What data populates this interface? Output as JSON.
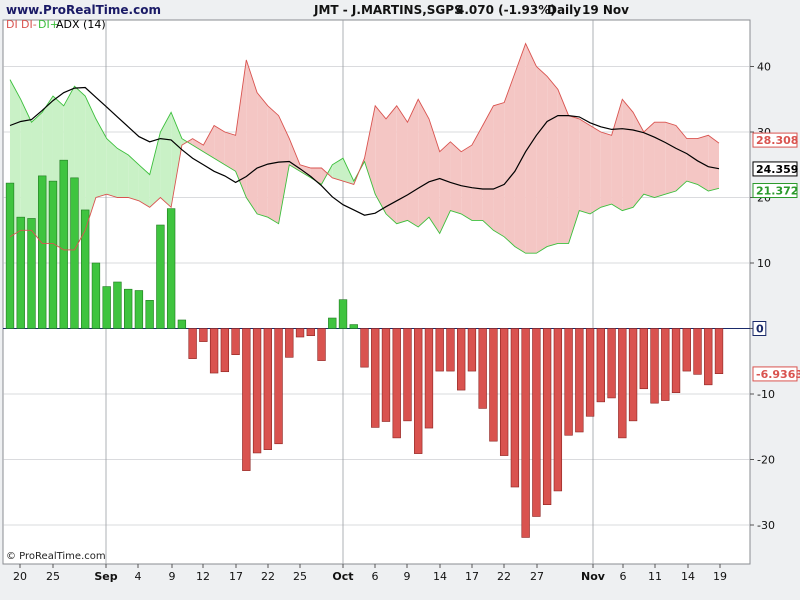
{
  "header": {
    "site": "www.ProRealTime.com",
    "title": "JMT - J.MARTINS,SGPS",
    "price": "4.070 (-1.93%)",
    "period": "Daily",
    "date": "19 Nov"
  },
  "legend": {
    "di": "DI",
    "di_minus": "DI-",
    "di_plus": "DI+",
    "adx": "ADX (14)"
  },
  "footer": {
    "copyright": "© ProRealTime.com"
  },
  "colors": {
    "di_plus": "#3cbf3c",
    "di_minus": "#d9534f",
    "adx": "#000000",
    "bull_fill": "#c9f1c6",
    "bear_fill": "#f4c6c4",
    "grid": "#b5b8bd",
    "plot_bg": "#ffffff",
    "page_bg": "#eef0f2"
  },
  "chart_data": {
    "type": "bar",
    "title": "JMT - J.MARTINS,SGPS",
    "ylim": [
      -35,
      45
    ],
    "y_ticks": [
      40,
      30,
      20,
      10,
      0,
      -10,
      -20,
      -30
    ],
    "x_tick_labels": [
      "20",
      "25",
      "Sep",
      "4",
      "9",
      "12",
      "17",
      "22",
      "25",
      "Oct",
      "6",
      "9",
      "14",
      "17",
      "22",
      "27",
      "Nov",
      "6",
      "11",
      "14",
      "19"
    ],
    "x_major_labels": [
      "Sep",
      "Oct",
      "Nov"
    ],
    "last_values": {
      "di_minus": "28.308",
      "adx": "24.359",
      "di_plus": "21.372",
      "zero": "0",
      "di": "-6.9363"
    },
    "series": [
      {
        "name": "DI",
        "values": [
          22.2,
          17.0,
          16.8,
          23.3,
          22.5,
          25.7,
          23.0,
          18.1,
          10.0,
          6.4,
          7.1,
          6.0,
          5.8,
          4.3,
          15.8,
          18.3,
          1.3,
          -4.6,
          -2.0,
          -6.8,
          -6.6,
          -4.0,
          -21.7,
          -19.0,
          -18.5,
          -17.6,
          -4.4,
          -1.3,
          -1.1,
          -4.9,
          1.6,
          4.4,
          0.6,
          -5.9,
          -15.1,
          -14.2,
          -16.7,
          -14.1,
          -19.1,
          -15.2,
          -6.5,
          -6.5,
          -9.4,
          -6.5,
          -12.2,
          -17.2,
          -19.4,
          -24.2,
          -31.9,
          -28.7,
          -26.9,
          -24.8,
          -16.3,
          -15.8,
          -13.4,
          -11.2,
          -10.6,
          -16.7,
          -14.1,
          -9.2,
          -11.4,
          -11.0,
          -9.8,
          -6.5,
          -7.0,
          -8.6,
          -6.9
        ]
      },
      {
        "name": "DI+",
        "values": [
          38.0,
          35.0,
          31.5,
          33.0,
          35.5,
          34.0,
          37.0,
          35.5,
          32.0,
          29.0,
          27.5,
          26.5,
          25.0,
          23.5,
          30.0,
          33.0,
          29.0,
          28.0,
          27.0,
          26.0,
          25.0,
          24.0,
          20.0,
          17.5,
          17.0,
          16.0,
          25.0,
          24.0,
          23.0,
          22.0,
          25.0,
          26.0,
          22.5,
          25.5,
          20.5,
          17.5,
          16.0,
          16.5,
          15.5,
          17.0,
          14.5,
          18.0,
          17.5,
          16.5,
          16.5,
          15.0,
          14.0,
          12.5,
          11.5,
          11.5,
          12.5,
          13.0,
          13.0,
          18.0,
          17.5,
          18.5,
          19.0,
          18.0,
          18.5,
          20.5,
          20.0,
          20.5,
          21.0,
          22.5,
          22.0,
          21.0,
          21.4
        ]
      },
      {
        "name": "DI-",
        "values": [
          14.0,
          15.0,
          15.0,
          13.0,
          13.0,
          12.0,
          12.0,
          15.0,
          20.0,
          20.5,
          20.0,
          20.0,
          19.5,
          18.5,
          20.0,
          18.5,
          28.0,
          29.0,
          28.0,
          31.0,
          30.0,
          29.5,
          41.0,
          36.0,
          34.0,
          32.5,
          29.0,
          25.0,
          24.5,
          24.5,
          23.0,
          22.5,
          22.0,
          26.0,
          34.0,
          32.0,
          34.0,
          31.5,
          35.0,
          32.0,
          27.0,
          28.5,
          27.0,
          28.0,
          31.0,
          34.0,
          34.5,
          39.0,
          43.5,
          40.0,
          38.5,
          36.5,
          32.5,
          32.0,
          31.0,
          30.0,
          29.5,
          35.0,
          33.0,
          30.0,
          31.5,
          31.5,
          31.0,
          29.0,
          29.0,
          29.5,
          28.3
        ]
      },
      {
        "name": "ADX (14)",
        "values": [
          31.0,
          31.6,
          31.9,
          33.3,
          34.8,
          36.0,
          36.7,
          36.8,
          35.3,
          33.8,
          32.3,
          30.8,
          29.3,
          28.5,
          29.0,
          28.8,
          27.3,
          26.0,
          25.0,
          24.0,
          23.3,
          22.3,
          23.2,
          24.5,
          25.1,
          25.4,
          25.5,
          24.4,
          23.2,
          21.8,
          20.1,
          18.9,
          18.1,
          17.3,
          17.6,
          18.6,
          19.5,
          20.4,
          21.4,
          22.4,
          22.9,
          22.3,
          21.8,
          21.5,
          21.3,
          21.3,
          22.0,
          24.0,
          27.0,
          29.5,
          31.6,
          32.5,
          32.5,
          32.3,
          31.4,
          30.8,
          30.4,
          30.5,
          30.3,
          29.9,
          29.2,
          28.4,
          27.5,
          26.7,
          25.6,
          24.7,
          24.4
        ]
      }
    ]
  }
}
